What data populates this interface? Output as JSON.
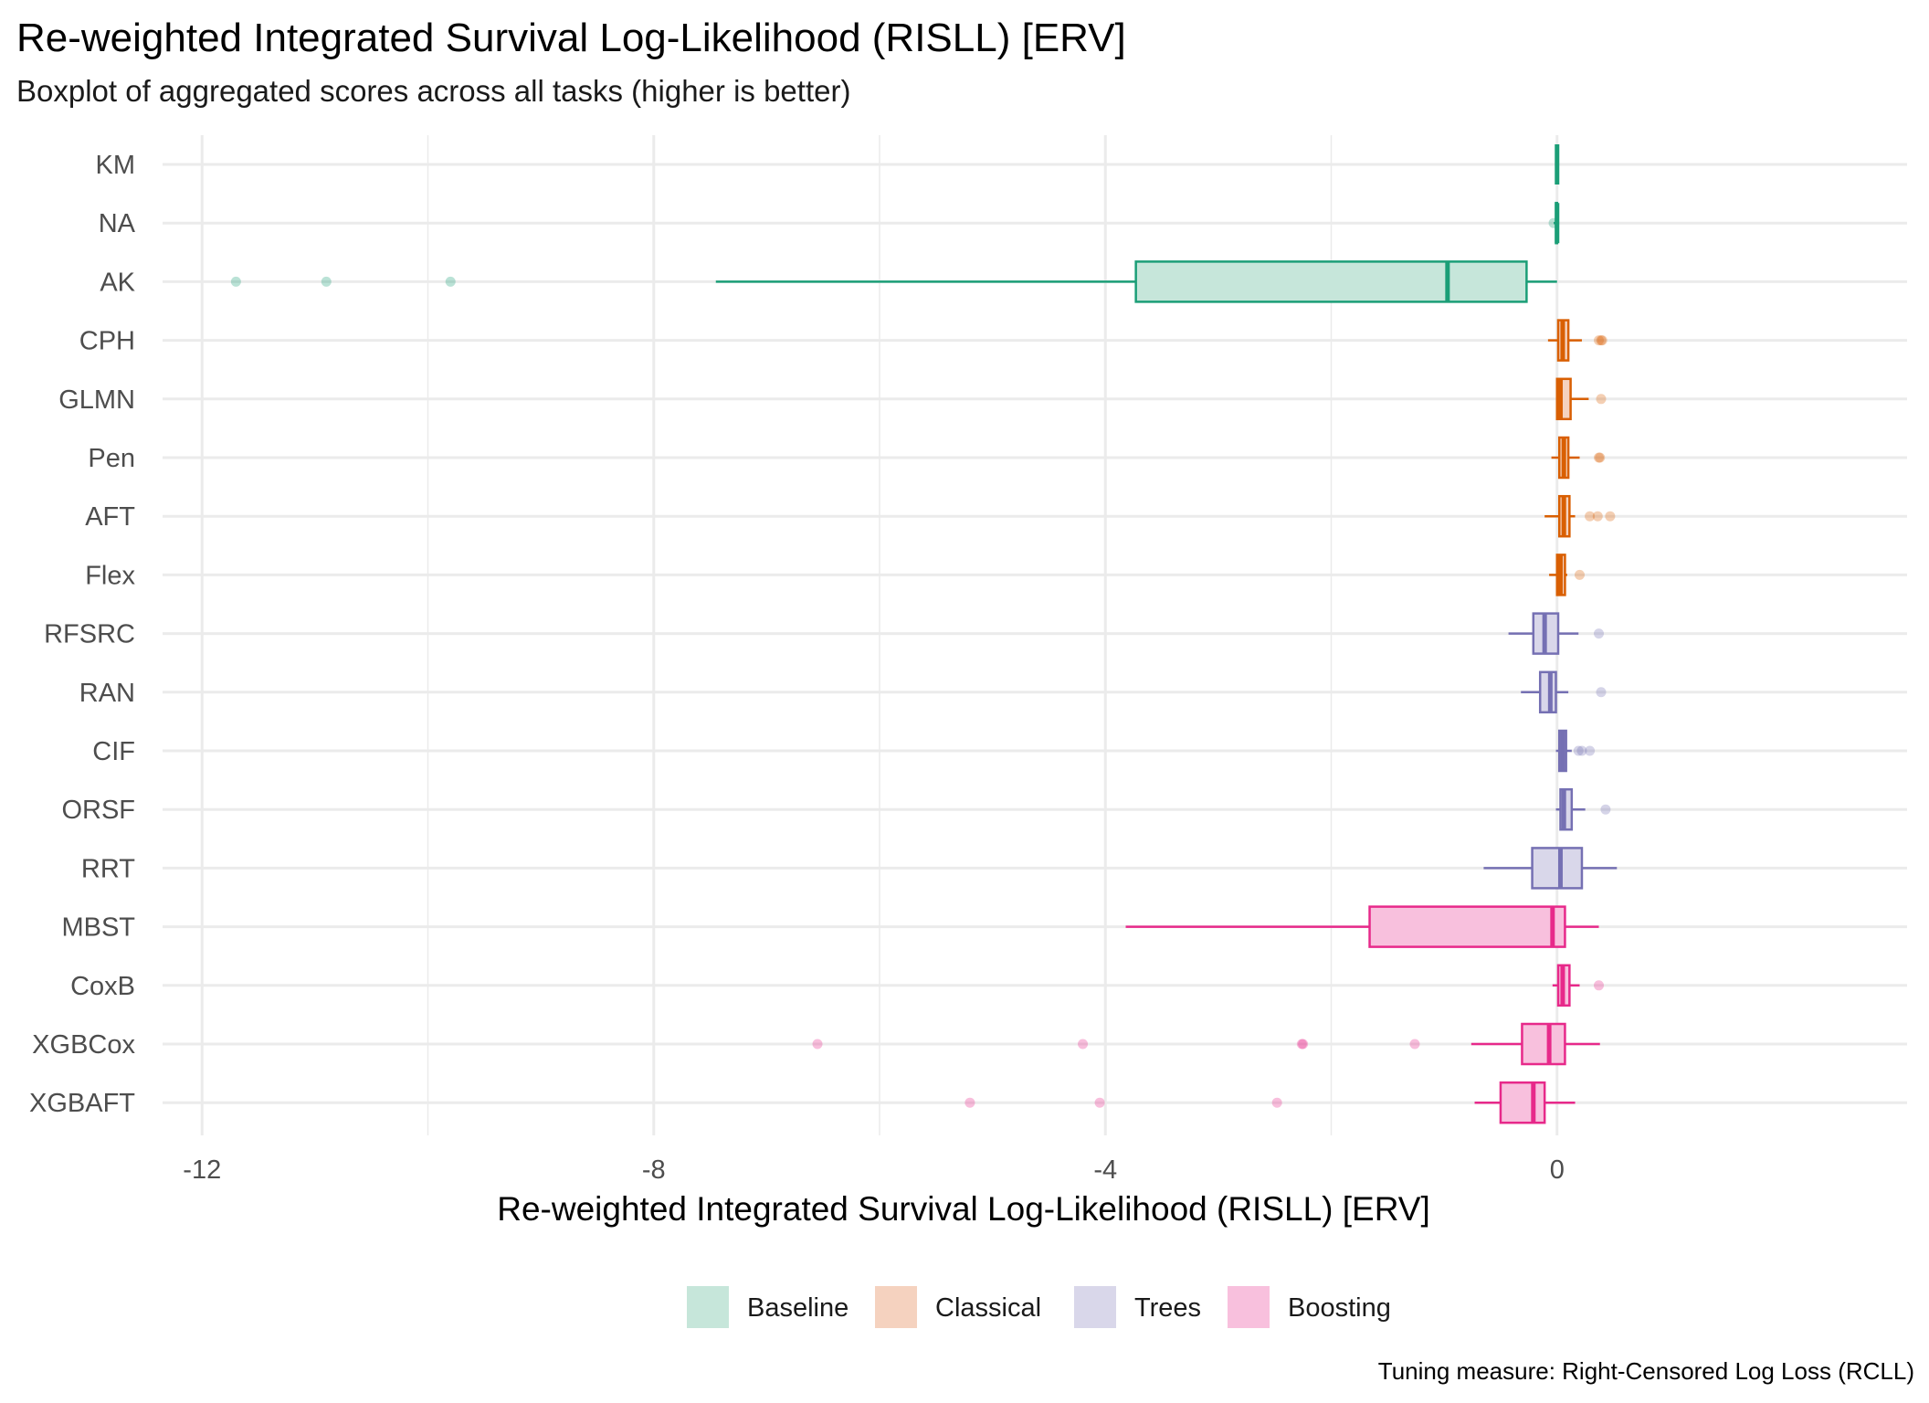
{
  "chart_data": {
    "type": "boxplot",
    "orientation": "horizontal",
    "title": "Re-weighted Integrated Survival Log-Likelihood (RISLL) [ERV]",
    "subtitle": "Boxplot of aggregated scores across all tasks (higher is better)",
    "xlabel": "Re-weighted Integrated Survival Log-Likelihood (RISLL) [ERV]",
    "ylabel": "",
    "xlim": [
      -12.35,
      3.1
    ],
    "x_ticks": [
      -12,
      -8,
      -4,
      0
    ],
    "x_tick_labels": [
      "-12",
      "-8",
      "-4",
      "0"
    ],
    "caption": "Tuning measure: Right-Censored Log Loss (RCLL)",
    "legend_position": "bottom",
    "groups": [
      {
        "name": "Baseline",
        "color": "#1B9E77",
        "fill": "#C6E6DA"
      },
      {
        "name": "Classical",
        "color": "#D95F02",
        "fill": "#F5D2BF"
      },
      {
        "name": "Trees",
        "color": "#7570B3",
        "fill": "#D9D7EA"
      },
      {
        "name": "Boosting",
        "color": "#E7298A",
        "fill": "#F8C0DD"
      }
    ],
    "series": [
      {
        "name": "KM",
        "group": "Baseline",
        "whisker_low": 0.0,
        "q1": 0.0,
        "median": 0.0,
        "q3": 0.0,
        "whisker_high": 0.0,
        "outliers": []
      },
      {
        "name": "NA",
        "group": "Baseline",
        "whisker_low": -0.03,
        "q1": -0.01,
        "median": 0.0,
        "q3": 0.0,
        "whisker_high": 0.0,
        "outliers": [
          -0.03
        ]
      },
      {
        "name": "AK",
        "group": "Baseline",
        "whisker_low": -7.45,
        "q1": -3.73,
        "median": -0.97,
        "q3": -0.27,
        "whisker_high": 0.0,
        "outliers": [
          -11.7,
          -10.9,
          -9.8
        ]
      },
      {
        "name": "CPH",
        "group": "Classical",
        "whisker_low": -0.08,
        "q1": 0.01,
        "median": 0.05,
        "q3": 0.1,
        "whisker_high": 0.22,
        "outliers": [
          0.37,
          0.39,
          0.4
        ]
      },
      {
        "name": "GLMN",
        "group": "Classical",
        "whisker_low": -0.01,
        "q1": 0.0,
        "median": 0.03,
        "q3": 0.12,
        "whisker_high": 0.28,
        "outliers": [
          0.39
        ]
      },
      {
        "name": "Pen",
        "group": "Classical",
        "whisker_low": -0.05,
        "q1": 0.02,
        "median": 0.06,
        "q3": 0.1,
        "whisker_high": 0.2,
        "outliers": [
          0.37,
          0.38
        ]
      },
      {
        "name": "AFT",
        "group": "Classical",
        "whisker_low": -0.11,
        "q1": 0.02,
        "median": 0.06,
        "q3": 0.11,
        "whisker_high": 0.16,
        "outliers": [
          0.29,
          0.36,
          0.47
        ]
      },
      {
        "name": "Flex",
        "group": "Classical",
        "whisker_low": -0.07,
        "q1": 0.0,
        "median": 0.03,
        "q3": 0.07,
        "whisker_high": 0.09,
        "outliers": [
          0.2
        ]
      },
      {
        "name": "RFSRC",
        "group": "Trees",
        "whisker_low": -0.43,
        "q1": -0.21,
        "median": -0.11,
        "q3": 0.01,
        "whisker_high": 0.19,
        "outliers": [
          0.37
        ]
      },
      {
        "name": "RAN",
        "group": "Trees",
        "whisker_low": -0.32,
        "q1": -0.15,
        "median": -0.06,
        "q3": -0.01,
        "whisker_high": 0.1,
        "outliers": [
          0.39
        ]
      },
      {
        "name": "CIF",
        "group": "Trees",
        "whisker_low": -0.01,
        "q1": 0.02,
        "median": 0.05,
        "q3": 0.08,
        "whisker_high": 0.13,
        "outliers": [
          0.19,
          0.22,
          0.29
        ]
      },
      {
        "name": "ORSF",
        "group": "Trees",
        "whisker_low": -0.01,
        "q1": 0.03,
        "median": 0.06,
        "q3": 0.13,
        "whisker_high": 0.25,
        "outliers": [
          0.43
        ]
      },
      {
        "name": "RRT",
        "group": "Trees",
        "whisker_low": -0.65,
        "q1": -0.22,
        "median": 0.03,
        "q3": 0.22,
        "whisker_high": 0.53,
        "outliers": []
      },
      {
        "name": "MBST",
        "group": "Boosting",
        "whisker_low": -3.82,
        "q1": -1.66,
        "median": -0.04,
        "q3": 0.07,
        "whisker_high": 0.37,
        "outliers": []
      },
      {
        "name": "CoxB",
        "group": "Boosting",
        "whisker_low": -0.04,
        "q1": 0.01,
        "median": 0.05,
        "q3": 0.11,
        "whisker_high": 0.2,
        "outliers": [
          0.37
        ]
      },
      {
        "name": "XGBCox",
        "group": "Boosting",
        "whisker_low": -0.76,
        "q1": -0.31,
        "median": -0.07,
        "q3": 0.07,
        "whisker_high": 0.38,
        "outliers": [
          -6.55,
          -4.2,
          -2.26,
          -2.25,
          -1.26
        ]
      },
      {
        "name": "XGBAFT",
        "group": "Boosting",
        "whisker_low": -0.73,
        "q1": -0.5,
        "median": -0.21,
        "q3": -0.11,
        "whisker_high": 0.16,
        "outliers": [
          -5.2,
          -4.05,
          -2.48
        ]
      }
    ]
  }
}
